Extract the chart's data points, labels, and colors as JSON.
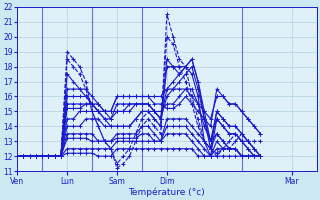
{
  "xlabel": "Température (°c)",
  "bg_color": "#cce8f0",
  "plot_bg_color": "#dff0f8",
  "line_color": "#1a1acc",
  "grid_color": "#a8ccd8",
  "yticks": [
    11,
    12,
    13,
    14,
    15,
    16,
    17,
    18,
    19,
    20,
    21,
    22
  ],
  "ylim": [
    11,
    22
  ],
  "xlim_start": 0,
  "xlim_end": 48,
  "xtick_labels": [
    "Ven",
    "Lun",
    "Sam",
    "Dim",
    "Mar"
  ],
  "xtick_positions": [
    0,
    8,
    16,
    24,
    44
  ],
  "vline_positions": [
    4,
    12,
    20,
    36
  ],
  "series": [
    [
      12,
      12,
      12,
      12,
      12,
      12,
      12,
      12,
      19,
      18.5,
      18,
      17,
      15,
      14,
      13,
      12.5,
      11.2,
      11.5,
      12,
      13,
      14,
      14.5,
      14,
      13.5,
      21.5,
      20,
      18.5,
      18,
      16,
      14.5,
      13,
      12.5,
      12,
      12.5,
      12.5,
      13,
      13.5,
      13,
      13,
      13
    ],
    [
      12,
      12,
      12,
      12,
      12,
      12,
      12,
      12,
      18.5,
      18,
      17.5,
      16.5,
      15,
      14,
      13,
      12.5,
      11.5,
      12,
      12.5,
      13.5,
      14.5,
      15,
      14.5,
      14,
      20,
      19.5,
      18,
      17,
      15.5,
      14,
      13,
      12.5,
      12.2,
      12.5,
      13,
      13.5,
      13,
      13,
      12.5,
      12
    ],
    [
      12,
      12,
      12,
      12,
      12,
      12,
      12,
      12,
      17.5,
      17,
      16.5,
      16,
      15.5,
      15,
      14.5,
      14,
      14,
      14,
      14,
      14.5,
      15,
      15,
      15,
      14.5,
      16.5,
      17,
      17.5,
      18,
      18.5,
      17,
      15,
      13,
      13.5,
      13,
      12.5,
      12.5,
      12,
      12,
      12,
      12
    ],
    [
      12,
      12,
      12,
      12,
      12,
      12,
      12,
      12,
      16.5,
      16.5,
      16.5,
      16.5,
      16,
      15.5,
      15,
      14.5,
      15,
      15,
      15.5,
      15.5,
      15.5,
      15.5,
      15,
      14.5,
      16,
      16.5,
      17,
      17.5,
      18,
      16.5,
      14.5,
      13,
      14.5,
      14,
      13.5,
      13.5,
      13,
      12.5,
      12,
      12
    ],
    [
      12,
      12,
      12,
      12,
      12,
      12,
      12,
      12,
      16,
      16,
      16,
      16,
      15.5,
      15,
      14.5,
      14.5,
      15.5,
      15.5,
      15.5,
      15.5,
      15.5,
      15.5,
      15,
      15,
      15.5,
      15.5,
      16,
      16.5,
      16.5,
      15.5,
      14,
      13,
      15,
      14.5,
      14,
      14,
      13.5,
      13,
      12.5,
      12
    ],
    [
      12,
      12,
      12,
      12,
      12,
      12,
      12,
      12,
      15.5,
      15.5,
      15.5,
      15.5,
      15.5,
      15,
      15,
      15,
      16,
      16,
      16,
      16,
      16,
      16,
      15.5,
      15.5,
      15.2,
      15.2,
      15.5,
      16,
      15.5,
      15,
      14.5,
      14,
      16.5,
      16,
      15.5,
      15.5,
      15,
      14.5,
      14,
      13.5
    ],
    [
      12,
      12,
      12,
      12,
      12,
      12,
      12,
      12,
      15.2,
      15.2,
      15.2,
      15.5,
      15.5,
      15.5,
      15,
      15,
      16,
      16,
      16,
      16,
      16,
      16,
      16,
      16,
      16.5,
      16.5,
      16.5,
      16.5,
      16,
      15.5,
      15,
      14.5,
      16,
      16,
      15.5,
      15.5,
      15,
      14.5,
      14,
      13.5
    ],
    [
      12,
      12,
      12,
      12,
      12,
      12,
      12,
      12,
      14.5,
      14.5,
      15,
      15,
      15,
      15,
      15,
      15,
      15,
      15,
      15,
      15.5,
      15.5,
      15.5,
      15,
      14.5,
      18.5,
      18,
      17.5,
      18,
      18.5,
      17,
      14.5,
      12.5,
      15,
      14.5,
      14,
      14,
      13.5,
      13,
      12.5,
      12
    ],
    [
      12,
      12,
      12,
      12,
      12,
      12,
      12,
      12,
      14,
      14,
      14,
      14.5,
      14.5,
      14.5,
      14,
      14,
      14,
      14,
      14,
      14.5,
      15,
      15,
      14.5,
      14,
      18,
      18,
      18,
      18,
      17.5,
      16,
      13,
      12,
      14.5,
      14,
      13.5,
      13.5,
      13,
      12.5,
      12,
      12
    ],
    [
      12,
      12,
      12,
      12,
      12,
      12,
      12,
      12,
      13.5,
      13.5,
      13.5,
      13.5,
      13.5,
      13,
      13,
      13,
      13.5,
      13.5,
      13.5,
      13.5,
      14,
      14,
      13.5,
      13,
      14.5,
      14.5,
      14.5,
      14.5,
      14,
      13.5,
      13,
      12.5,
      13.5,
      13,
      12.5,
      12.5,
      12,
      12,
      12,
      12
    ],
    [
      12,
      12,
      12,
      12,
      12,
      12,
      12,
      12,
      13.2,
      13.2,
      13.2,
      13.2,
      13,
      13,
      13,
      13,
      13.2,
      13.2,
      13.2,
      13.2,
      13.5,
      13.5,
      13,
      13,
      14,
      14,
      14,
      14,
      13.5,
      13,
      12.5,
      12,
      13,
      12.5,
      12.5,
      12.5,
      12,
      12,
      12,
      12
    ],
    [
      12,
      12,
      12,
      12,
      12,
      12,
      12,
      12,
      12.5,
      12.5,
      12.5,
      12.5,
      12.5,
      12.5,
      12.5,
      12.5,
      13,
      13,
      13,
      13,
      13,
      13,
      13,
      13,
      13.5,
      13.5,
      13.5,
      13.5,
      13,
      12.5,
      12,
      12,
      12.5,
      12.5,
      12.5,
      12.5,
      12,
      12,
      12,
      12
    ],
    [
      12,
      12,
      12,
      12,
      12,
      12,
      12,
      12,
      12.2,
      12.2,
      12.2,
      12.2,
      12.2,
      12,
      12,
      12,
      12.5,
      12.5,
      12.5,
      12.5,
      12.5,
      12.5,
      12.5,
      12.5,
      12.5,
      12.5,
      12.5,
      12.5,
      12.5,
      12,
      12,
      12,
      12,
      12,
      12,
      12,
      12,
      12,
      12,
      12
    ]
  ],
  "series_styles": [
    {
      "ls": "--",
      "lw": 0.8
    },
    {
      "ls": "--",
      "lw": 0.8
    },
    {
      "ls": "-",
      "lw": 0.8
    },
    {
      "ls": "-",
      "lw": 0.8
    },
    {
      "ls": "-",
      "lw": 0.8
    },
    {
      "ls": "-",
      "lw": 0.8
    },
    {
      "ls": "-",
      "lw": 0.8
    },
    {
      "ls": "-",
      "lw": 0.8
    },
    {
      "ls": "-",
      "lw": 0.8
    },
    {
      "ls": "-",
      "lw": 0.8
    },
    {
      "ls": "-",
      "lw": 0.8
    },
    {
      "ls": "-",
      "lw": 0.8
    },
    {
      "ls": "-",
      "lw": 0.8
    }
  ]
}
